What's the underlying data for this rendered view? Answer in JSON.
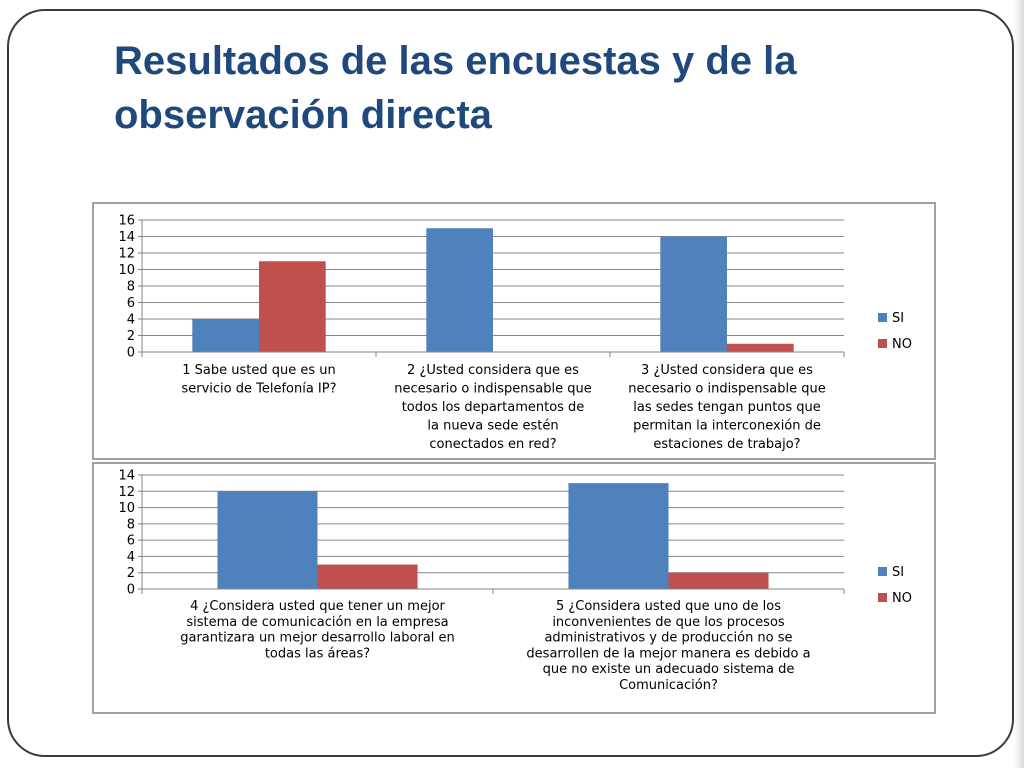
{
  "slide": {
    "title": "Resultados de las encuestas y de la observación directa"
  },
  "colors": {
    "si": "#4f81bd",
    "no": "#c0504d",
    "grid": "#868686"
  },
  "chart_data": [
    {
      "type": "bar",
      "categories": [
        [
          "1 Sabe usted que es un",
          "servicio de Telefonía IP?"
        ],
        [
          "2 ¿Usted considera que es",
          "necesario o indispensable que",
          "todos los departamentos de",
          "la nueva sede estén",
          "conectados en red?"
        ],
        [
          "3 ¿Usted considera que es",
          "necesario o indispensable que",
          "las sedes tengan puntos que",
          "permitan la interconexión de",
          "estaciones de trabajo?"
        ]
      ],
      "series": [
        {
          "name": "SI",
          "values": [
            4,
            15,
            14
          ]
        },
        {
          "name": "NO",
          "values": [
            11,
            0,
            1
          ]
        }
      ],
      "ylim": [
        0,
        16
      ],
      "yticks": [
        "0",
        "2",
        "4",
        "6",
        "8",
        "10",
        "12",
        "14",
        "16"
      ],
      "grid": true,
      "legend": "right"
    },
    {
      "type": "bar",
      "categories": [
        [
          "4 ¿Considera usted que tener un mejor",
          "sistema de comunicación en la empresa",
          "garantizara un mejor desarrollo laboral en",
          "todas las áreas?"
        ],
        [
          "5 ¿Considera usted que uno de los",
          "inconvenientes de que los procesos",
          "administrativos y de producción no se",
          "desarrollen de la mejor manera es debido a",
          "que no existe un adecuado sistema de",
          "Comunicación?"
        ]
      ],
      "series": [
        {
          "name": "SI",
          "values": [
            12,
            13
          ]
        },
        {
          "name": "NO",
          "values": [
            3,
            2
          ]
        }
      ],
      "ylim": [
        0,
        14
      ],
      "yticks": [
        "0",
        "2",
        "4",
        "6",
        "8",
        "10",
        "12",
        "14"
      ],
      "grid": true,
      "legend": "right"
    }
  ]
}
